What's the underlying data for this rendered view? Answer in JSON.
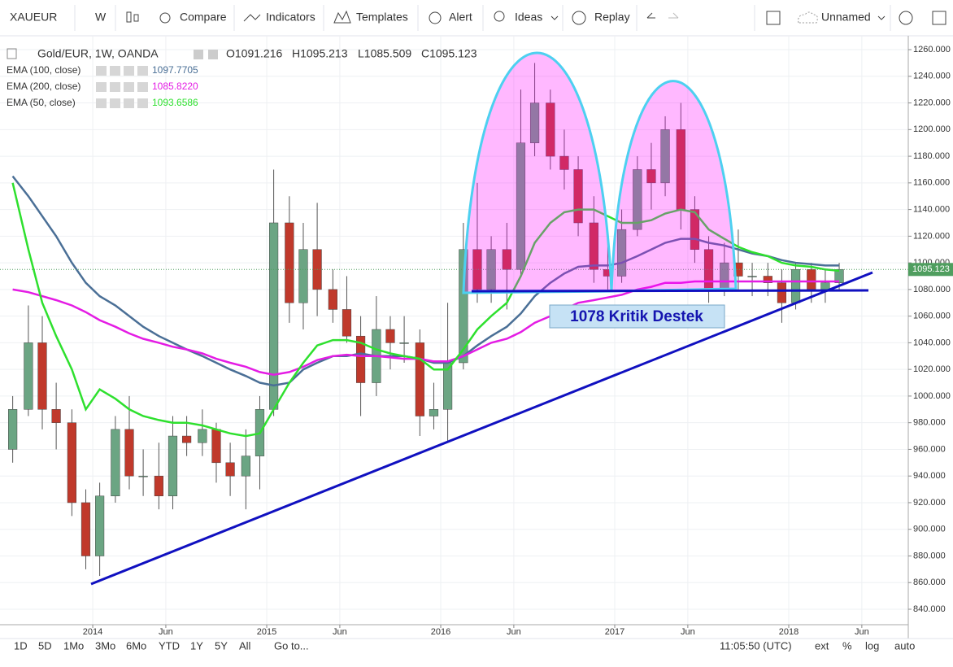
{
  "toolbar": {
    "symbol": "XAUEUR",
    "interval": "W",
    "compare": "Compare",
    "indicators": "Indicators",
    "templates": "Templates",
    "alert": "Alert",
    "ideas": "Ideas",
    "replay": "Replay",
    "layout": "Unnamed"
  },
  "legend": {
    "symbol": "Gold/EUR, 1W, OANDA",
    "ohlc": [
      "O1091.216",
      "H1095.213",
      "L1085.509",
      "C1095.123"
    ],
    "indicator_values": [
      "1097.7705",
      "1085.8220",
      "1093.6586"
    ]
  },
  "chart_data": {
    "type": "candlestick",
    "x": [
      2013.54,
      2013.63,
      2013.71,
      2013.79,
      2013.88,
      2013.96,
      2014.04,
      2014.13,
      2014.21,
      2014.29,
      2014.38,
      2014.46,
      2014.54,
      2014.63,
      2014.71,
      2014.79,
      2014.88,
      2014.96,
      2015.04,
      2015.13,
      2015.21,
      2015.29,
      2015.38,
      2015.46,
      2015.54,
      2015.63,
      2015.71,
      2015.79,
      2015.88,
      2015.96,
      2016.04,
      2016.13,
      2016.21,
      2016.29,
      2016.38,
      2016.46,
      2016.54,
      2016.63,
      2016.71,
      2016.79,
      2016.88,
      2016.96,
      2017.04,
      2017.13,
      2017.21,
      2017.29,
      2017.38,
      2017.46,
      2017.54,
      2017.63,
      2017.71,
      2017.79,
      2017.88,
      2017.96,
      2018.04,
      2018.13,
      2018.21,
      2018.29
    ],
    "open": [
      960,
      990,
      1040,
      990,
      980,
      920,
      880,
      925,
      975,
      940,
      940,
      925,
      970,
      965,
      975,
      950,
      940,
      955,
      990,
      1130,
      1070,
      1110,
      1080,
      1065,
      1045,
      1010,
      1050,
      1040,
      1040,
      985,
      990,
      1025,
      1110,
      1080,
      1110,
      1095,
      1190,
      1220,
      1180,
      1170,
      1130,
      1095,
      1090,
      1125,
      1170,
      1160,
      1200,
      1140,
      1110,
      1080,
      1100,
      1090,
      1090,
      1085,
      1070,
      1095,
      1080,
      1085
    ],
    "high": [
      1000,
      1068,
      1060,
      1010,
      990,
      930,
      935,
      985,
      1000,
      960,
      965,
      985,
      985,
      990,
      980,
      965,
      975,
      1000,
      1170,
      1150,
      1130,
      1145,
      1095,
      1090,
      1060,
      1075,
      1060,
      1060,
      1050,
      1010,
      1070,
      1130,
      1160,
      1120,
      1130,
      1230,
      1250,
      1230,
      1200,
      1180,
      1150,
      1120,
      1140,
      1180,
      1190,
      1210,
      1220,
      1150,
      1120,
      1115,
      1125,
      1100,
      1100,
      1095,
      1100,
      1100,
      1095,
      1100
    ],
    "low": [
      950,
      985,
      975,
      960,
      910,
      870,
      865,
      920,
      930,
      925,
      915,
      915,
      955,
      955,
      935,
      925,
      915,
      930,
      985,
      1055,
      1050,
      1060,
      1055,
      1040,
      985,
      1000,
      1020,
      1025,
      970,
      975,
      965,
      1020,
      1070,
      1070,
      1065,
      1090,
      1180,
      1170,
      1155,
      1120,
      1085,
      1080,
      1085,
      1120,
      1140,
      1150,
      1125,
      1100,
      1070,
      1075,
      1080,
      1075,
      1075,
      1055,
      1065,
      1070,
      1070,
      1080
    ],
    "close": [
      990,
      1040,
      990,
      980,
      920,
      880,
      925,
      975,
      940,
      940,
      925,
      970,
      965,
      975,
      950,
      940,
      955,
      990,
      1130,
      1070,
      1110,
      1080,
      1065,
      1045,
      1010,
      1050,
      1040,
      1040,
      985,
      990,
      1025,
      1110,
      1080,
      1110,
      1095,
      1190,
      1220,
      1180,
      1170,
      1130,
      1095,
      1090,
      1125,
      1170,
      1160,
      1200,
      1140,
      1110,
      1080,
      1100,
      1090,
      1090,
      1085,
      1070,
      1095,
      1080,
      1085,
      1095
    ],
    "up_color": "#6ba583",
    "down_color": "#c0392b",
    "series": [
      {
        "name": "EMA (100, close)",
        "color": "#4a6f96",
        "values": [
          1165,
          1150,
          1135,
          1120,
          1100,
          1085,
          1075,
          1068,
          1060,
          1052,
          1045,
          1040,
          1035,
          1030,
          1025,
          1020,
          1015,
          1010,
          1008,
          1010,
          1020,
          1025,
          1030,
          1030,
          1032,
          1030,
          1030,
          1030,
          1028,
          1025,
          1025,
          1030,
          1038,
          1045,
          1052,
          1062,
          1075,
          1085,
          1092,
          1097,
          1098,
          1098,
          1100,
          1105,
          1110,
          1115,
          1118,
          1118,
          1115,
          1113,
          1110,
          1107,
          1105,
          1102,
          1100,
          1099,
          1098,
          1098
        ]
      },
      {
        "name": "EMA (200, close)",
        "color": "#e41ce4",
        "values": [
          1080,
          1078,
          1075,
          1072,
          1068,
          1063,
          1057,
          1052,
          1047,
          1043,
          1040,
          1037,
          1035,
          1032,
          1028,
          1025,
          1022,
          1018,
          1016,
          1018,
          1022,
          1027,
          1030,
          1031,
          1030,
          1030,
          1029,
          1028,
          1028,
          1026,
          1026,
          1030,
          1035,
          1040,
          1043,
          1048,
          1055,
          1060,
          1065,
          1070,
          1072,
          1074,
          1076,
          1080,
          1082,
          1085,
          1085,
          1086,
          1086,
          1086,
          1086,
          1086,
          1086,
          1086,
          1086,
          1086,
          1086,
          1086
        ]
      },
      {
        "name": "EMA (50, close)",
        "color": "#2ee02e",
        "values": [
          1160,
          1110,
          1070,
          1045,
          1020,
          990,
          1005,
          998,
          990,
          985,
          982,
          980,
          980,
          978,
          975,
          972,
          970,
          972,
          990,
          1010,
          1025,
          1038,
          1042,
          1042,
          1040,
          1035,
          1032,
          1030,
          1028,
          1020,
          1020,
          1035,
          1050,
          1060,
          1070,
          1090,
          1115,
          1130,
          1138,
          1140,
          1140,
          1135,
          1130,
          1130,
          1132,
          1137,
          1140,
          1138,
          1125,
          1118,
          1112,
          1108,
          1105,
          1100,
          1098,
          1097,
          1095,
          1094
        ]
      }
    ],
    "xlim": [
      2013.467,
      2018.687
    ],
    "xticks": [
      {
        "value": 2014,
        "label": "2014"
      },
      {
        "value": 2014.42,
        "label": "Jun"
      },
      {
        "value": 2015,
        "label": "2015"
      },
      {
        "value": 2015.42,
        "label": "Jun"
      },
      {
        "value": 2016,
        "label": "2016"
      },
      {
        "value": 2016.42,
        "label": "Jun"
      },
      {
        "value": 2017,
        "label": "2017"
      },
      {
        "value": 2017.42,
        "label": "Jun"
      },
      {
        "value": 2018,
        "label": "2018"
      },
      {
        "value": 2018.42,
        "label": "Jun"
      }
    ],
    "ylim": [
      828.4,
      1270.4
    ],
    "yticks": [
      {
        "value": 840,
        "label": "840.000"
      },
      {
        "value": 860,
        "label": "860.000"
      },
      {
        "value": 880,
        "label": "880.000"
      },
      {
        "value": 900,
        "label": "900.000"
      },
      {
        "value": 920,
        "label": "920.000"
      },
      {
        "value": 940,
        "label": "940.000"
      },
      {
        "value": 960,
        "label": "960.000"
      },
      {
        "value": 980,
        "label": "980.000"
      },
      {
        "value": 1000,
        "label": "1000.000"
      },
      {
        "value": 1020,
        "label": "1020.000"
      },
      {
        "value": 1040,
        "label": "1040.000"
      },
      {
        "value": 1060,
        "label": "1060.000"
      },
      {
        "value": 1080,
        "label": "1080.000"
      },
      {
        "value": 1100,
        "label": "1100.000"
      },
      {
        "value": 1120,
        "label": "1120.000"
      },
      {
        "value": 1140,
        "label": "1140.000"
      },
      {
        "value": 1160,
        "label": "1160.000"
      },
      {
        "value": 1180,
        "label": "1180.000"
      },
      {
        "value": 1200,
        "label": "1200.000"
      },
      {
        "value": 1220,
        "label": "1220.000"
      },
      {
        "value": 1240,
        "label": "1240.000"
      },
      {
        "value": 1260,
        "label": "1260.000"
      }
    ],
    "grid": true,
    "last_price_label": "1095.123",
    "annotation": "1078 Kritik Destek"
  },
  "bottom_bar": {
    "ranges": [
      "1D",
      "5D",
      "1Mo",
      "3Mo",
      "6Mo",
      "YTD",
      "1Y",
      "5Y",
      "All"
    ],
    "goto": "Go to...",
    "time": "11:05:50 (UTC)",
    "options": [
      "ext",
      "%",
      "log",
      "auto"
    ]
  }
}
